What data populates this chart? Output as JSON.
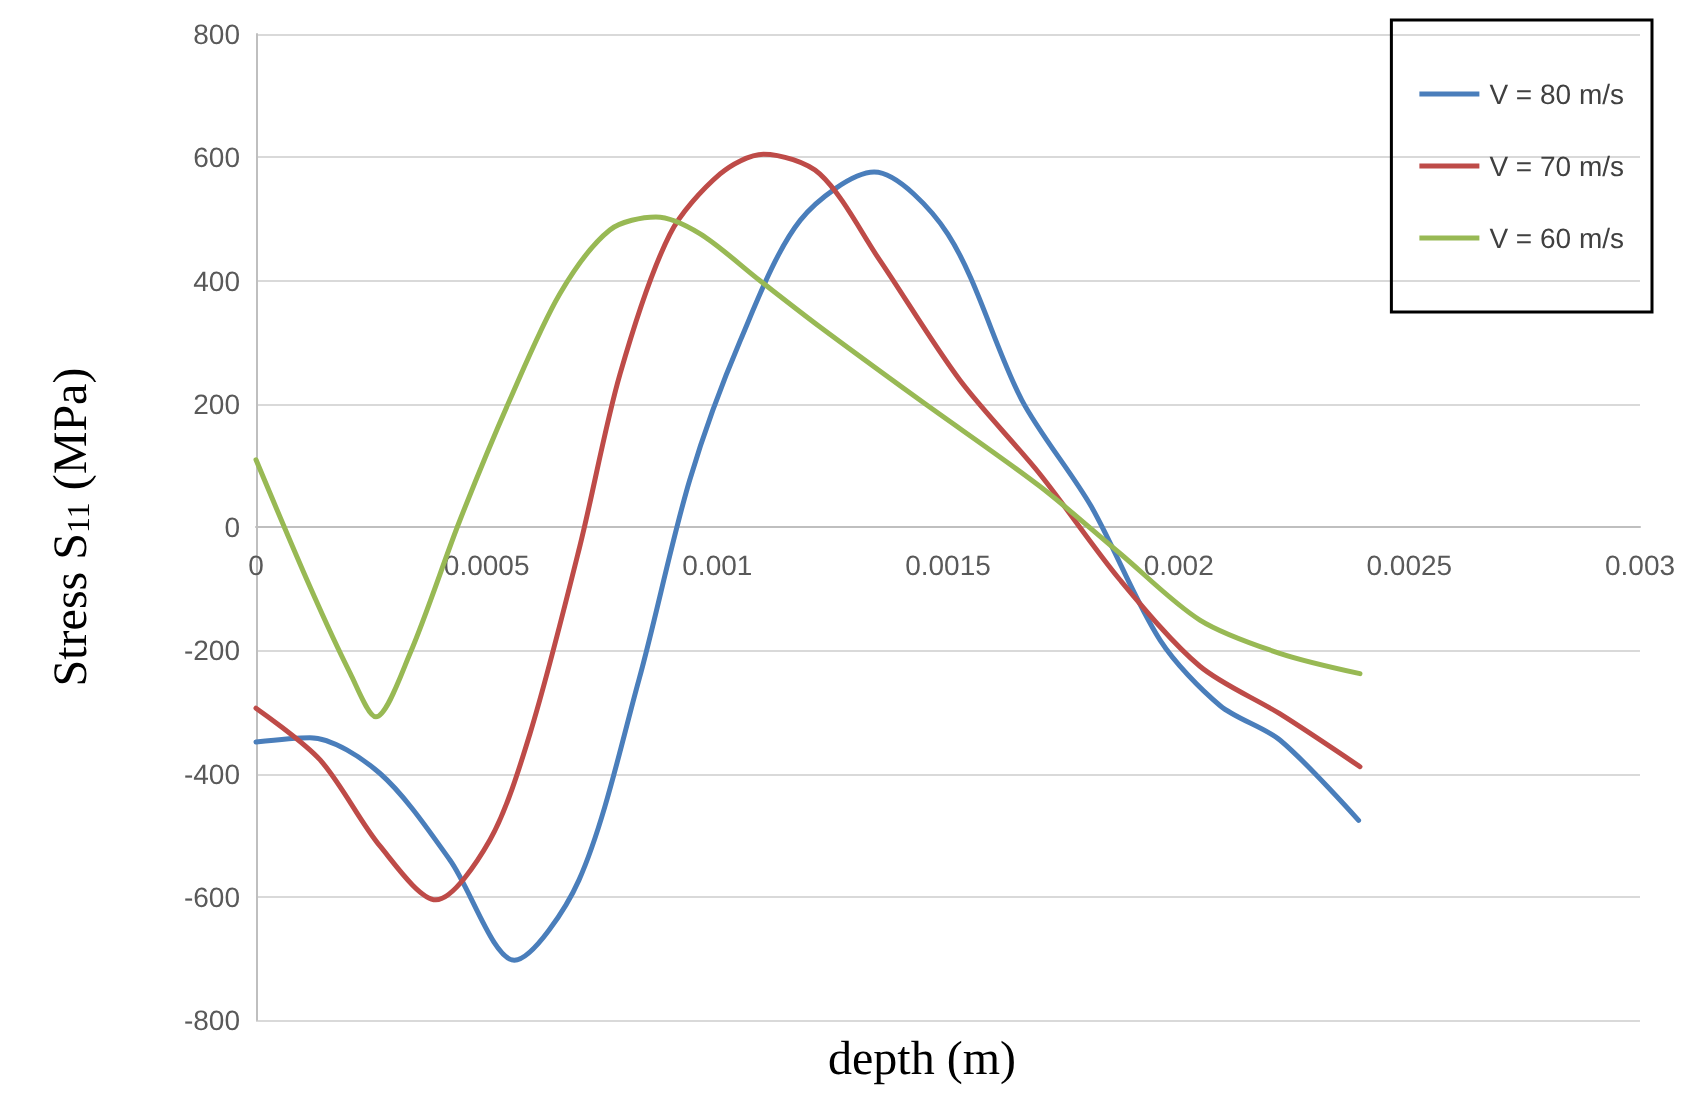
{
  "chart_data": {
    "type": "line",
    "xlabel": "depth (m)",
    "ylabel": "Stress S$_{11}$ (MPa)",
    "xlim": [
      0,
      0.003
    ],
    "xticks": [
      0,
      0.0005,
      0.001,
      0.0015,
      0.002,
      0.0025,
      0.003
    ],
    "ylim": [
      -800,
      800
    ],
    "yticks": [
      -800,
      -600,
      -400,
      -200,
      0,
      200,
      400,
      600,
      800
    ],
    "grid": "y",
    "legend": "top right",
    "marker": "none",
    "line_style": "solid",
    "series": [
      {
        "name": "V = 80 m/s",
        "color": "#4a7ebb",
        "x": [
          0,
          0.000117,
          0.000269,
          0.00042,
          0.00056,
          0.0007,
          0.00083,
          0.00094,
          0.00105,
          0.00118,
          0.00134,
          0.0015,
          0.00166,
          0.00181,
          0.00196,
          0.00209,
          0.00222,
          0.00239
        ],
        "values": [
          -349,
          -342,
          -400,
          -540,
          -703,
          -573,
          -248,
          76,
          303,
          498,
          576,
          475,
          206,
          34,
          -184,
          -290,
          -346,
          -476
        ]
      },
      {
        "name": "V = 70 m/s",
        "color": "#be4b48",
        "x": [
          0,
          0.000139,
          0.000269,
          0.00039,
          0.000507,
          0.000594,
          0.000702,
          0.000789,
          0.000897,
          0.001006,
          0.0011,
          0.001222,
          0.001352,
          0.001526,
          0.001699,
          0.001873,
          0.002046,
          0.002219,
          0.002393
        ],
        "values": [
          -294,
          -378,
          -518,
          -605,
          -508,
          -335,
          -31,
          248,
          475,
          573,
          605,
          573,
          433,
          238,
          86,
          -86,
          -226,
          -303,
          -389
        ]
      },
      {
        "name": "V = 60 m/s",
        "color": "#98b954",
        "x": [
          0,
          0.000117,
          0.000204,
          0.00026,
          0.000334,
          0.000442,
          0.00055,
          0.000659,
          0.000767,
          0.000867,
          0.000962,
          0.001092,
          0.001222,
          0.001439,
          0.001699,
          0.001873,
          0.002046,
          0.002219,
          0.002393
        ],
        "values": [
          109,
          -97,
          -237,
          -308,
          -205,
          11,
          206,
          379,
          482,
          503,
          476,
          400,
          325,
          206,
          66,
          -43,
          -151,
          -205,
          -238
        ]
      }
    ]
  }
}
